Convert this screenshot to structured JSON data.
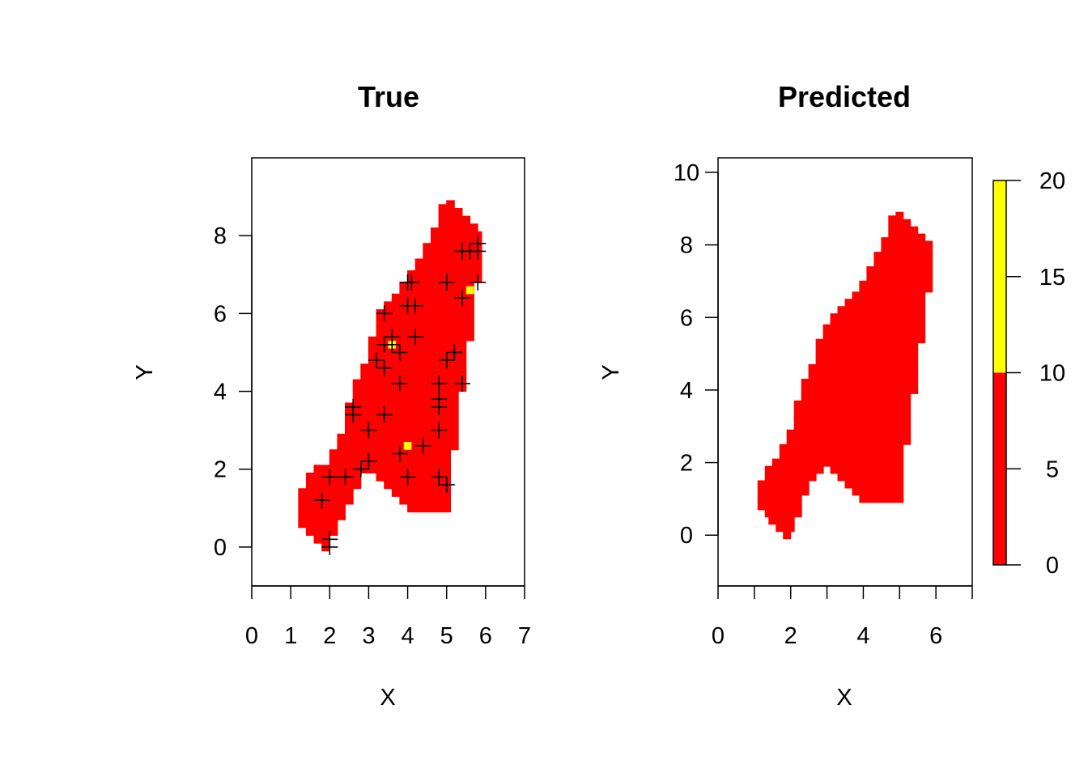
{
  "chart_data": [
    {
      "type": "heatmap",
      "title": "True",
      "xlabel": "X",
      "ylabel": "Y",
      "xlim": [
        0,
        7
      ],
      "ylim": [
        -1,
        10
      ],
      "xticks": [
        0,
        1,
        2,
        3,
        4,
        5,
        6,
        7
      ],
      "yticks": [
        0,
        2,
        4,
        6,
        8
      ],
      "grid": false,
      "cell_size": 0.2,
      "fill_color": "#FF0000",
      "region_outline": [
        [
          1.2,
          0.7
        ],
        [
          1.2,
          1.5
        ],
        [
          1.4,
          1.5
        ],
        [
          1.4,
          1.9
        ],
        [
          1.6,
          1.9
        ],
        [
          1.6,
          2.1
        ],
        [
          2.0,
          2.1
        ],
        [
          2.0,
          2.5
        ],
        [
          2.2,
          2.5
        ],
        [
          2.2,
          2.9
        ],
        [
          2.4,
          2.9
        ],
        [
          2.4,
          3.7
        ],
        [
          2.6,
          3.7
        ],
        [
          2.6,
          4.3
        ],
        [
          2.8,
          4.3
        ],
        [
          2.8,
          4.7
        ],
        [
          3.0,
          4.7
        ],
        [
          3.0,
          5.4
        ],
        [
          3.2,
          5.4
        ],
        [
          3.2,
          6.1
        ],
        [
          3.4,
          6.1
        ],
        [
          3.4,
          6.3
        ],
        [
          3.6,
          6.3
        ],
        [
          3.6,
          6.5
        ],
        [
          3.8,
          6.5
        ],
        [
          3.8,
          6.8
        ],
        [
          4.0,
          6.8
        ],
        [
          4.0,
          7.1
        ],
        [
          4.2,
          7.1
        ],
        [
          4.2,
          7.4
        ],
        [
          4.4,
          7.4
        ],
        [
          4.4,
          7.8
        ],
        [
          4.6,
          7.8
        ],
        [
          4.6,
          8.2
        ],
        [
          4.8,
          8.2
        ],
        [
          4.8,
          8.8
        ],
        [
          5.0,
          8.8
        ],
        [
          5.0,
          8.9
        ],
        [
          5.2,
          8.9
        ],
        [
          5.2,
          8.7
        ],
        [
          5.4,
          8.7
        ],
        [
          5.4,
          8.5
        ],
        [
          5.6,
          8.5
        ],
        [
          5.6,
          8.3
        ],
        [
          5.8,
          8.3
        ],
        [
          5.8,
          8.1
        ],
        [
          5.9,
          8.1
        ],
        [
          5.9,
          6.8
        ],
        [
          5.7,
          6.8
        ],
        [
          5.7,
          5.3
        ],
        [
          5.5,
          5.3
        ],
        [
          5.5,
          4.0
        ],
        [
          5.3,
          4.0
        ],
        [
          5.3,
          2.5
        ],
        [
          5.1,
          2.5
        ],
        [
          5.1,
          0.9
        ],
        [
          4.0,
          0.9
        ],
        [
          4.0,
          1.1
        ],
        [
          3.8,
          1.1
        ],
        [
          3.8,
          1.3
        ],
        [
          3.6,
          1.3
        ],
        [
          3.6,
          1.5
        ],
        [
          3.4,
          1.5
        ],
        [
          3.4,
          1.7
        ],
        [
          3.2,
          1.7
        ],
        [
          3.2,
          1.9
        ],
        [
          2.8,
          1.9
        ],
        [
          2.8,
          1.5
        ],
        [
          2.6,
          1.5
        ],
        [
          2.6,
          1.1
        ],
        [
          2.4,
          1.1
        ],
        [
          2.4,
          0.7
        ],
        [
          2.2,
          0.7
        ],
        [
          2.2,
          0.3
        ],
        [
          2.0,
          0.3
        ],
        [
          2.0,
          -0.1
        ],
        [
          1.8,
          -0.1
        ],
        [
          1.8,
          0.1
        ],
        [
          1.6,
          0.1
        ],
        [
          1.6,
          0.3
        ],
        [
          1.4,
          0.3
        ],
        [
          1.4,
          0.5
        ],
        [
          1.2,
          0.5
        ]
      ],
      "highlight_color": "#FFFF00",
      "highlight_cells": [
        [
          5.6,
          6.6
        ],
        [
          3.6,
          5.2
        ],
        [
          4.0,
          2.6
        ]
      ],
      "point_symbol": "+",
      "points": [
        [
          5.8,
          7.8
        ],
        [
          5.8,
          7.6
        ],
        [
          5.4,
          7.6
        ],
        [
          5.6,
          7.6
        ],
        [
          4.0,
          6.8
        ],
        [
          4.1,
          6.8
        ],
        [
          5.0,
          6.8
        ],
        [
          5.8,
          6.8
        ],
        [
          4.0,
          6.2
        ],
        [
          4.2,
          6.2
        ],
        [
          5.4,
          6.4
        ],
        [
          3.4,
          6.0
        ],
        [
          3.6,
          5.4
        ],
        [
          4.2,
          5.4
        ],
        [
          3.4,
          5.2
        ],
        [
          3.6,
          5.2
        ],
        [
          3.8,
          5.0
        ],
        [
          5.2,
          5.0
        ],
        [
          3.2,
          4.8
        ],
        [
          3.4,
          4.6
        ],
        [
          5.0,
          4.8
        ],
        [
          3.8,
          4.2
        ],
        [
          4.8,
          4.2
        ],
        [
          5.4,
          4.2
        ],
        [
          2.6,
          3.6
        ],
        [
          2.6,
          3.4
        ],
        [
          3.4,
          3.4
        ],
        [
          4.8,
          3.8
        ],
        [
          4.8,
          3.6
        ],
        [
          3.0,
          3.0
        ],
        [
          4.8,
          3.0
        ],
        [
          3.0,
          2.2
        ],
        [
          2.8,
          2.0
        ],
        [
          3.8,
          2.4
        ],
        [
          4.4,
          2.6
        ],
        [
          2.0,
          1.8
        ],
        [
          2.4,
          1.8
        ],
        [
          4.0,
          1.8
        ],
        [
          4.8,
          1.8
        ],
        [
          5.0,
          1.6
        ],
        [
          1.8,
          1.2
        ],
        [
          2.0,
          0.2
        ],
        [
          2.0,
          0.0
        ]
      ]
    },
    {
      "type": "heatmap",
      "title": "Predicted",
      "xlabel": "X",
      "ylabel": "Y",
      "xlim": [
        0,
        7
      ],
      "ylim": [
        -1.4,
        10.4
      ],
      "xticks": [
        0,
        2,
        4,
        6
      ],
      "xticks_minor": [
        1,
        3,
        5,
        7
      ],
      "yticks": [
        0,
        2,
        4,
        6,
        8,
        10
      ],
      "grid": false,
      "cell_size": 0.2,
      "fill_color": "#FF0000",
      "region_outline": [
        [
          1.1,
          0.7
        ],
        [
          1.1,
          1.5
        ],
        [
          1.3,
          1.5
        ],
        [
          1.3,
          1.9
        ],
        [
          1.5,
          1.9
        ],
        [
          1.5,
          2.1
        ],
        [
          1.7,
          2.1
        ],
        [
          1.7,
          2.5
        ],
        [
          1.9,
          2.5
        ],
        [
          1.9,
          2.9
        ],
        [
          2.1,
          2.9
        ],
        [
          2.1,
          3.7
        ],
        [
          2.3,
          3.7
        ],
        [
          2.3,
          4.3
        ],
        [
          2.5,
          4.3
        ],
        [
          2.5,
          4.7
        ],
        [
          2.7,
          4.7
        ],
        [
          2.7,
          5.4
        ],
        [
          2.9,
          5.4
        ],
        [
          2.9,
          5.8
        ],
        [
          3.1,
          5.8
        ],
        [
          3.1,
          6.1
        ],
        [
          3.3,
          6.1
        ],
        [
          3.3,
          6.3
        ],
        [
          3.5,
          6.3
        ],
        [
          3.5,
          6.5
        ],
        [
          3.7,
          6.5
        ],
        [
          3.7,
          6.7
        ],
        [
          3.9,
          6.7
        ],
        [
          3.9,
          7.0
        ],
        [
          4.1,
          7.0
        ],
        [
          4.1,
          7.4
        ],
        [
          4.3,
          7.4
        ],
        [
          4.3,
          7.8
        ],
        [
          4.5,
          7.8
        ],
        [
          4.5,
          8.2
        ],
        [
          4.7,
          8.2
        ],
        [
          4.7,
          8.8
        ],
        [
          4.9,
          8.8
        ],
        [
          4.9,
          8.9
        ],
        [
          5.1,
          8.9
        ],
        [
          5.1,
          8.7
        ],
        [
          5.3,
          8.7
        ],
        [
          5.3,
          8.5
        ],
        [
          5.5,
          8.5
        ],
        [
          5.5,
          8.3
        ],
        [
          5.7,
          8.3
        ],
        [
          5.7,
          8.1
        ],
        [
          5.9,
          8.1
        ],
        [
          5.9,
          6.7
        ],
        [
          5.7,
          6.7
        ],
        [
          5.7,
          5.3
        ],
        [
          5.5,
          5.3
        ],
        [
          5.5,
          3.9
        ],
        [
          5.3,
          3.9
        ],
        [
          5.3,
          2.5
        ],
        [
          5.1,
          2.5
        ],
        [
          5.1,
          0.9
        ],
        [
          3.9,
          0.9
        ],
        [
          3.9,
          1.1
        ],
        [
          3.7,
          1.1
        ],
        [
          3.7,
          1.3
        ],
        [
          3.5,
          1.3
        ],
        [
          3.5,
          1.5
        ],
        [
          3.3,
          1.5
        ],
        [
          3.3,
          1.7
        ],
        [
          3.1,
          1.7
        ],
        [
          3.1,
          1.9
        ],
        [
          2.9,
          1.9
        ],
        [
          2.9,
          1.7
        ],
        [
          2.7,
          1.7
        ],
        [
          2.7,
          1.5
        ],
        [
          2.5,
          1.5
        ],
        [
          2.5,
          1.1
        ],
        [
          2.3,
          1.1
        ],
        [
          2.3,
          0.5
        ],
        [
          2.1,
          0.5
        ],
        [
          2.1,
          0.1
        ],
        [
          2.0,
          0.1
        ],
        [
          2.0,
          -0.1
        ],
        [
          1.8,
          -0.1
        ],
        [
          1.8,
          0.1
        ],
        [
          1.6,
          0.1
        ],
        [
          1.6,
          0.3
        ],
        [
          1.4,
          0.3
        ],
        [
          1.4,
          0.5
        ],
        [
          1.3,
          0.5
        ],
        [
          1.3,
          0.7
        ]
      ],
      "legend": {
        "ticks": [
          0,
          5,
          10,
          15,
          20
        ],
        "range": [
          0,
          20
        ],
        "bins": [
          {
            "from": 0,
            "to": 10,
            "color": "#FF0000"
          },
          {
            "from": 10,
            "to": 20,
            "color": "#FFFF00"
          }
        ]
      }
    }
  ]
}
